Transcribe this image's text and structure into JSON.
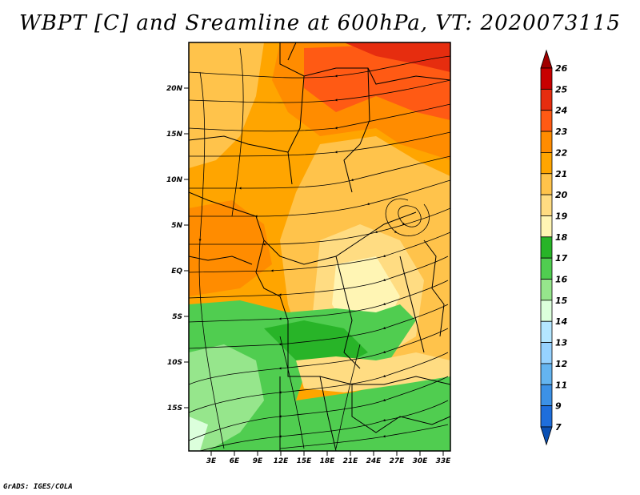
{
  "title": "WBPT [C] and Sreamline at 600hPa, VT: 2020073115",
  "footer": "GrADS: IGES/COLA",
  "map": {
    "lat_labels": [
      "20N",
      "15N",
      "10N",
      "5N",
      "EQ",
      "5S",
      "10S",
      "15S"
    ],
    "lon_labels": [
      "3E",
      "6E",
      "9E",
      "12E",
      "15E",
      "18E",
      "21E",
      "24E",
      "27E",
      "30E",
      "33E"
    ]
  },
  "colorbar": {
    "labels": [
      "26",
      "25",
      "24",
      "23",
      "22",
      "21",
      "20",
      "19",
      "18",
      "17",
      "16",
      "15",
      "14",
      "13",
      "12",
      "11",
      "9",
      "7"
    ],
    "colors": [
      "#a00000",
      "#c80000",
      "#e62d0f",
      "#ff5a14",
      "#ff8c00",
      "#ffa500",
      "#ffc34b",
      "#ffdc82",
      "#fff5b4",
      "#28b428",
      "#50cd50",
      "#96e68c",
      "#dcffdc",
      "#b4e6ff",
      "#96d2ff",
      "#64b4f0",
      "#3c91e6",
      "#1e6edc",
      "#0a50b4"
    ]
  }
}
